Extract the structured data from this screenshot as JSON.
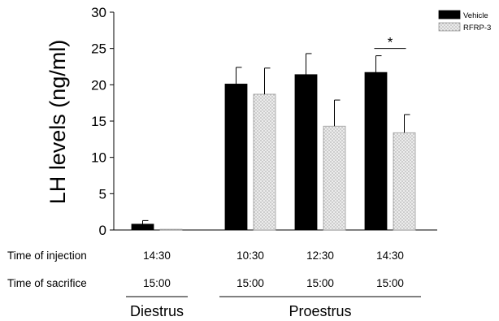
{
  "chart_data": {
    "type": "bar",
    "ylabel": "LH levels (ng/ml)",
    "ylim": [
      0,
      30
    ],
    "yticks": [
      0,
      5,
      10,
      15,
      20,
      25,
      30
    ],
    "grid": false,
    "legend_position": "top-right",
    "categories": [
      "14:30 / 15:00 (Diestrus)",
      "10:30 / 15:00",
      "12:30 / 15:00",
      "14:30 / 15:00"
    ],
    "series": [
      {
        "name": "Vehicle",
        "color": "#000000",
        "values": [
          0.8,
          20.1,
          21.4,
          21.7
        ],
        "errors": [
          0.5,
          2.3,
          2.9,
          2.3
        ]
      },
      {
        "name": "RFRP-3",
        "color": "#e6e6e6",
        "pattern": "dotted",
        "values": [
          0.1,
          18.7,
          14.3,
          13.4
        ],
        "errors": [
          0,
          3.6,
          3.6,
          2.5
        ]
      }
    ],
    "significance": [
      {
        "group": 3,
        "label": "*"
      }
    ],
    "rows": [
      {
        "label": "Time of injection",
        "values": [
          "14:30",
          "10:30",
          "12:30",
          "14:30"
        ]
      },
      {
        "label": "Time of sacrifice",
        "values": [
          "15:00",
          "15:00",
          "15:00",
          "15:00"
        ]
      }
    ],
    "groups": [
      {
        "label": "Diestrus",
        "from": 0,
        "to": 0
      },
      {
        "label": "Proestrus",
        "from": 1,
        "to": 3
      }
    ]
  }
}
